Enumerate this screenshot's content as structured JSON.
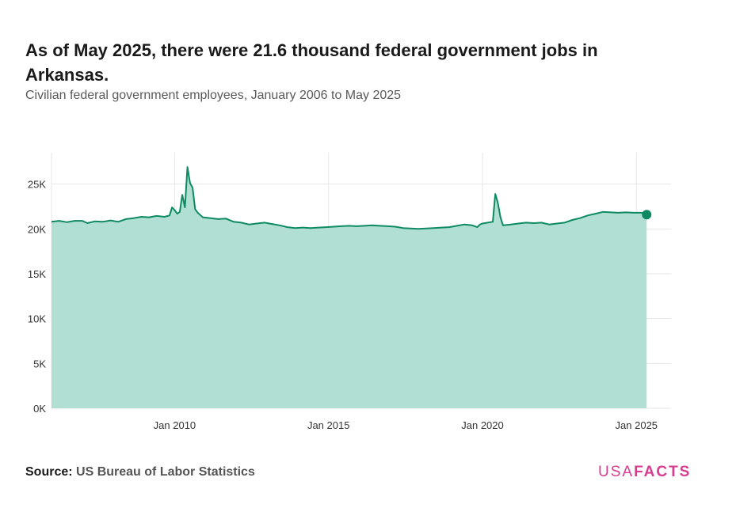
{
  "title": "As of May 2025, there were 21.6 thousand federal government jobs in Arkansas.",
  "subtitle": "Civilian federal government employees, January 2006 to May 2025",
  "source_label": "Source:",
  "source_text": "US Bureau of Labor Statistics",
  "brand_usa": "USA",
  "brand_facts": "FACTS",
  "colors": {
    "line": "#0e8a62",
    "area": "#b2dfd4",
    "grid": "#e6e6e6",
    "brand": "#d63c8f"
  },
  "chart_data": {
    "type": "area",
    "title": "As of May 2025, there were 21.6 thousand federal government jobs in Arkansas.",
    "subtitle": "Civilian federal government employees, January 2006 to May 2025",
    "xlabel": "",
    "ylabel": "",
    "ylim": [
      0,
      28500
    ],
    "xlim": [
      "2006-01",
      "2025-05"
    ],
    "grid": true,
    "legend": "none",
    "y_ticks": [
      0,
      5000,
      10000,
      15000,
      20000,
      25000
    ],
    "y_tick_labels": [
      "0K",
      "5K",
      "10K",
      "15K",
      "20K",
      "25K"
    ],
    "x_ticks": [
      "2010-01",
      "2015-01",
      "2020-01",
      "2025-01"
    ],
    "x_tick_labels": [
      "Jan 2010",
      "Jan 2015",
      "Jan 2020",
      "Jan 2025"
    ],
    "series": [
      {
        "name": "Civilian federal government employees",
        "points": [
          [
            "2006-01",
            20800
          ],
          [
            "2006-04",
            20900
          ],
          [
            "2006-07",
            20750
          ],
          [
            "2006-10",
            20900
          ],
          [
            "2007-01",
            20900
          ],
          [
            "2007-03",
            20650
          ],
          [
            "2007-06",
            20850
          ],
          [
            "2007-09",
            20800
          ],
          [
            "2007-12",
            20950
          ],
          [
            "2008-03",
            20800
          ],
          [
            "2008-06",
            21100
          ],
          [
            "2008-09",
            21200
          ],
          [
            "2008-12",
            21350
          ],
          [
            "2009-03",
            21300
          ],
          [
            "2009-06",
            21450
          ],
          [
            "2009-09",
            21350
          ],
          [
            "2009-11",
            21500
          ],
          [
            "2009-12",
            22400
          ],
          [
            "2010-01",
            22100
          ],
          [
            "2010-02",
            21700
          ],
          [
            "2010-03",
            21900
          ],
          [
            "2010-04",
            23800
          ],
          [
            "2010-05",
            22400
          ],
          [
            "2010-06",
            26900
          ],
          [
            "2010-07",
            25100
          ],
          [
            "2010-08",
            24600
          ],
          [
            "2010-09",
            22200
          ],
          [
            "2010-10",
            21800
          ],
          [
            "2010-12",
            21300
          ],
          [
            "2011-03",
            21200
          ],
          [
            "2011-06",
            21100
          ],
          [
            "2011-09",
            21150
          ],
          [
            "2011-12",
            20800
          ],
          [
            "2012-03",
            20700
          ],
          [
            "2012-06",
            20500
          ],
          [
            "2012-09",
            20600
          ],
          [
            "2012-12",
            20700
          ],
          [
            "2013-03",
            20550
          ],
          [
            "2013-06",
            20400
          ],
          [
            "2013-09",
            20200
          ],
          [
            "2013-12",
            20100
          ],
          [
            "2014-03",
            20150
          ],
          [
            "2014-06",
            20100
          ],
          [
            "2014-09",
            20150
          ],
          [
            "2014-12",
            20200
          ],
          [
            "2015-03",
            20250
          ],
          [
            "2015-06",
            20300
          ],
          [
            "2015-09",
            20350
          ],
          [
            "2015-12",
            20300
          ],
          [
            "2016-03",
            20350
          ],
          [
            "2016-06",
            20400
          ],
          [
            "2016-09",
            20350
          ],
          [
            "2016-12",
            20300
          ],
          [
            "2017-03",
            20250
          ],
          [
            "2017-06",
            20100
          ],
          [
            "2017-09",
            20050
          ],
          [
            "2017-12",
            20000
          ],
          [
            "2018-03",
            20050
          ],
          [
            "2018-06",
            20100
          ],
          [
            "2018-09",
            20150
          ],
          [
            "2018-12",
            20200
          ],
          [
            "2019-03",
            20350
          ],
          [
            "2019-06",
            20500
          ],
          [
            "2019-09",
            20400
          ],
          [
            "2019-11",
            20200
          ],
          [
            "2019-12",
            20500
          ],
          [
            "2020-01",
            20600
          ],
          [
            "2020-03",
            20700
          ],
          [
            "2020-05",
            20800
          ],
          [
            "2020-06",
            23900
          ],
          [
            "2020-07",
            22900
          ],
          [
            "2020-08",
            21300
          ],
          [
            "2020-09",
            20400
          ],
          [
            "2020-12",
            20500
          ],
          [
            "2021-03",
            20600
          ],
          [
            "2021-06",
            20700
          ],
          [
            "2021-09",
            20650
          ],
          [
            "2021-12",
            20700
          ],
          [
            "2022-03",
            20500
          ],
          [
            "2022-06",
            20600
          ],
          [
            "2022-09",
            20700
          ],
          [
            "2022-12",
            21000
          ],
          [
            "2023-03",
            21200
          ],
          [
            "2023-06",
            21500
          ],
          [
            "2023-09",
            21700
          ],
          [
            "2023-12",
            21900
          ],
          [
            "2024-03",
            21850
          ],
          [
            "2024-06",
            21800
          ],
          [
            "2024-09",
            21850
          ],
          [
            "2024-12",
            21800
          ],
          [
            "2025-03",
            21800
          ],
          [
            "2025-05",
            21600
          ]
        ]
      }
    ]
  }
}
